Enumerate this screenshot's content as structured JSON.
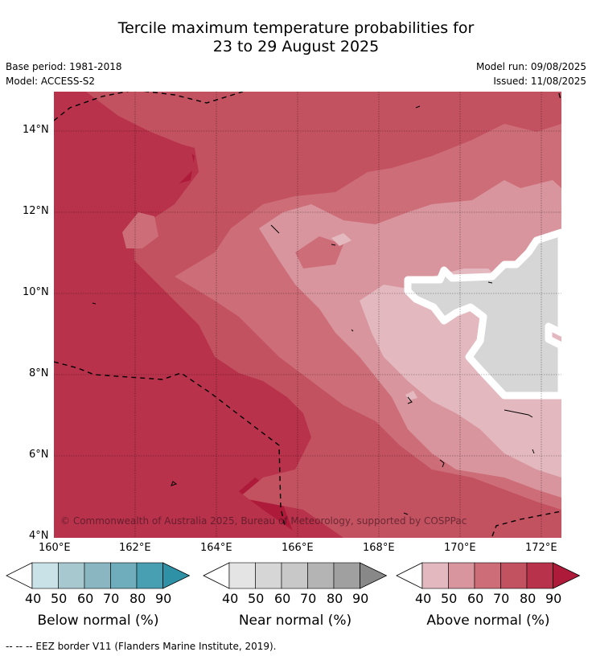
{
  "title": {
    "line1": "Tercile maximum temperature probabilities for",
    "line2": "23 to 29 August 2025"
  },
  "meta": {
    "base_period": "Base period: 1981-2018",
    "model": "Model: ACCESS-S2",
    "model_run": "Model run: 09/08/2025",
    "issued": "Issued: 11/08/2025"
  },
  "map": {
    "lat_ticks": [
      "14°N",
      "12°N",
      "10°N",
      "8°N",
      "6°N",
      "4°N"
    ],
    "lon_ticks": [
      "160°E",
      "162°E",
      "164°E",
      "166°E",
      "168°E",
      "170°E",
      "172°E"
    ],
    "copyright": "© Commonwealth of Australia 2025, Bureau of Meteorology, supported by COSPPac"
  },
  "colorbars": [
    {
      "title": "Below normal (%)",
      "labels": [
        "40",
        "50",
        "60",
        "70",
        "80",
        "90"
      ],
      "colors": [
        "#ffffff",
        "#c9e2e8",
        "#a7c8ce",
        "#89b6c1",
        "#6fadbc",
        "#479fb1",
        "#2f91a5"
      ]
    },
    {
      "title": "Near normal (%)",
      "labels": [
        "40",
        "50",
        "60",
        "70",
        "80",
        "90"
      ],
      "colors": [
        "#ffffff",
        "#e4e4e4",
        "#d6d6d6",
        "#c8c8c8",
        "#b4b4b4",
        "#a0a0a0",
        "#888888"
      ]
    },
    {
      "title": "Above normal (%)",
      "labels": [
        "40",
        "50",
        "60",
        "70",
        "80",
        "90"
      ],
      "colors": [
        "#ffffff",
        "#e3b9bf",
        "#d8959e",
        "#cd6d78",
        "#c35260",
        "#b8324b",
        "#ad1a3a"
      ]
    }
  ],
  "footnote": "--  --  -- EEZ border V11 (Flanders Marine Institute, 2019)."
}
